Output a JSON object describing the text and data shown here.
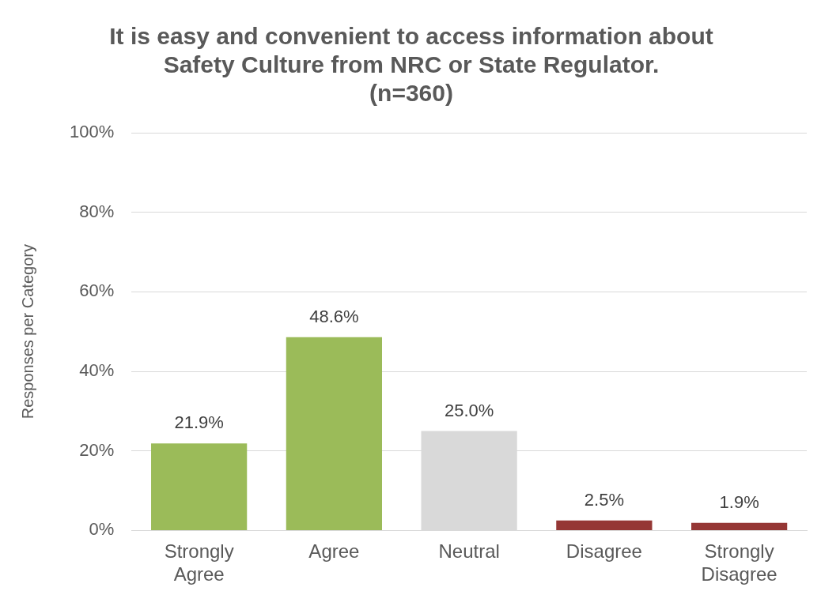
{
  "chart_data": {
    "type": "bar",
    "title": "It is easy and convenient to access information about Safety Culture from NRC or State Regulator.",
    "subtitle": "(n=360)",
    "ylabel": "Responses per Category",
    "categories": [
      "Strongly Agree",
      "Agree",
      "Neutral",
      "Disagree",
      "Strongly Disagree"
    ],
    "values": [
      21.9,
      48.6,
      25.0,
      2.5,
      1.9
    ],
    "colors": [
      "#9bbb59",
      "#9bbb59",
      "#d9d9d9",
      "#953735",
      "#953735"
    ],
    "value_labels": [
      "21.9%",
      "48.6%",
      "25.0%",
      "2.5%",
      "1.9%"
    ],
    "ylim": [
      0,
      100
    ],
    "yticks": [
      {
        "value": 0,
        "label": "0%"
      },
      {
        "value": 20,
        "label": "20%"
      },
      {
        "value": 40,
        "label": "40%"
      },
      {
        "value": 60,
        "label": "60%"
      },
      {
        "value": 80,
        "label": "80%"
      },
      {
        "value": 100,
        "label": "100%"
      }
    ],
    "grid": "y",
    "legend": false
  }
}
